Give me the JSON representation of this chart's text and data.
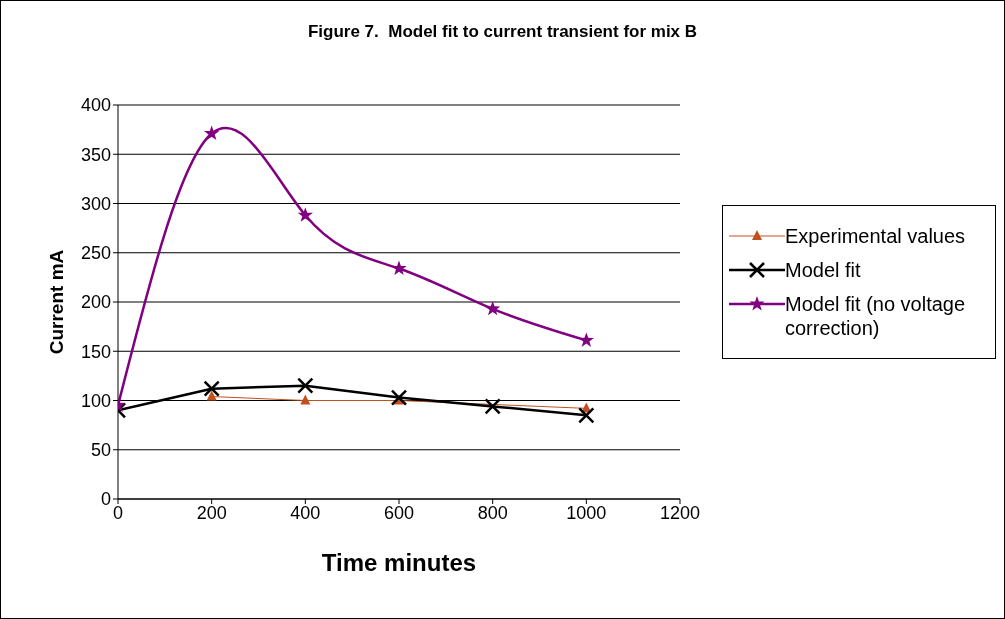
{
  "chart_data": {
    "type": "line",
    "title": "Figure 7.  Model fit to current transient for mix B",
    "xlabel": "Time minutes",
    "ylabel": "Current mA",
    "x": [
      0,
      200,
      400,
      600,
      800,
      1000
    ],
    "series": [
      {
        "name": "Experimental values",
        "color": "#c0501f",
        "marker": "triangle",
        "values": [
          null,
          104,
          100,
          100,
          null,
          92
        ]
      },
      {
        "name": "Model fit",
        "color": "#000000",
        "marker": "cross",
        "values": [
          90,
          112,
          115,
          103,
          94,
          85
        ]
      },
      {
        "name": "Model fit (no voltage correction)",
        "color": "#800080",
        "marker": "star",
        "values": [
          95,
          371,
          288,
          234,
          193,
          161
        ]
      }
    ],
    "xlim": [
      0,
      1200
    ],
    "xticks": [
      0,
      200,
      400,
      600,
      800,
      1000,
      1200
    ],
    "ylim": [
      0,
      400
    ],
    "yticks": [
      0,
      50,
      100,
      150,
      200,
      250,
      300,
      350,
      400
    ],
    "grid": "y",
    "legend": "right",
    "line_style": "solid"
  }
}
